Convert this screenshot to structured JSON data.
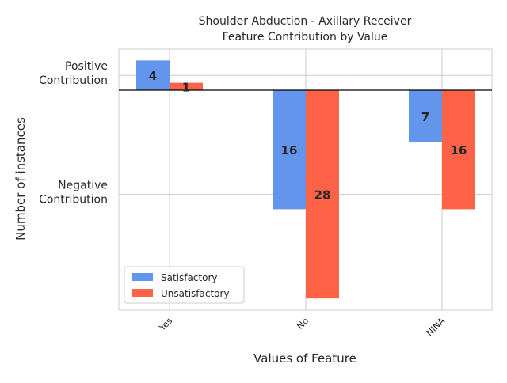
{
  "chart_data": {
    "type": "bar",
    "title_lines": [
      "Shoulder Abduction - Axillary Receiver",
      "Feature Contribution by Value"
    ],
    "xlabel": "Values of Feature",
    "ylabel": "Number of instances",
    "categories": [
      "Yes",
      "No",
      "NINA"
    ],
    "series": [
      {
        "name": "Satisfactory",
        "color": "#6495ED",
        "values": [
          4,
          -16,
          -7
        ],
        "labels": [
          "4",
          "16",
          "7"
        ]
      },
      {
        "name": "Unsatisfactory",
        "color": "#FF6347",
        "values": [
          1,
          -28,
          -16
        ],
        "labels": [
          "1",
          "28",
          "16"
        ]
      }
    ],
    "ylim": [
      -30,
      5
    ],
    "ytick_values": [
      2,
      -14
    ],
    "ytick_labels": [
      [
        "Positive",
        "Contribution"
      ],
      [
        "Negative",
        "Contribution"
      ]
    ],
    "legend_position": "lower-left",
    "grid": true
  }
}
